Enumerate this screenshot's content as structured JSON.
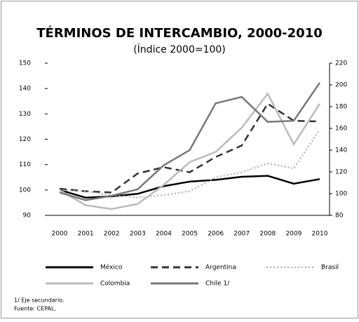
{
  "chart_data": {
    "type": "line",
    "title": "TÉRMINOS DE INTERCAMBIO, 2000-2010",
    "subtitle": "(Índice 2000=100)",
    "categories": [
      "2000",
      "2001",
      "2002",
      "2003",
      "2004",
      "2005",
      "2006",
      "2007",
      "2008",
      "2009",
      "2010"
    ],
    "series": [
      {
        "name": "México",
        "color": "#000000",
        "dash": "solid",
        "values": [
          100,
          97,
          97.5,
          98.5,
          101.5,
          103.3,
          104,
          105.2,
          105.6,
          102.5,
          104.3
        ]
      },
      {
        "name": "Argentina",
        "color": "#333333",
        "dash": "dashed",
        "values": [
          100.5,
          99.5,
          99,
          106.5,
          109,
          107,
          113,
          117.5,
          134,
          127.3,
          127
        ]
      },
      {
        "name": "Brasil",
        "color": "#aaaaaa",
        "dash": "dotted",
        "values": [
          100,
          99.5,
          98,
          97,
          98,
          99.5,
          105,
          107,
          110.5,
          108.5,
          123.8
        ]
      },
      {
        "name": "Colombia",
        "color": "#bbbbbb",
        "dash": "solid",
        "values": [
          100,
          94,
          92.5,
          94.5,
          102,
          111,
          115,
          124.5,
          138,
          118,
          134
        ]
      },
      {
        "name": "Chile 1/",
        "color": "#777777",
        "dash": "solid",
        "axis": "y2",
        "values": [
          101,
          94,
          98,
          104,
          126,
          140,
          183,
          189,
          166,
          167,
          202
        ]
      }
    ],
    "ylim": [
      90,
      150
    ],
    "yticks": [
      90,
      100,
      110,
      120,
      130,
      140,
      150
    ],
    "y2lim": [
      80,
      220
    ],
    "y2ticks": [
      80,
      100,
      120,
      140,
      160,
      180,
      200,
      220
    ],
    "notes": [
      "1/ Eje secundario.",
      "Fuente: CEPAL."
    ]
  }
}
